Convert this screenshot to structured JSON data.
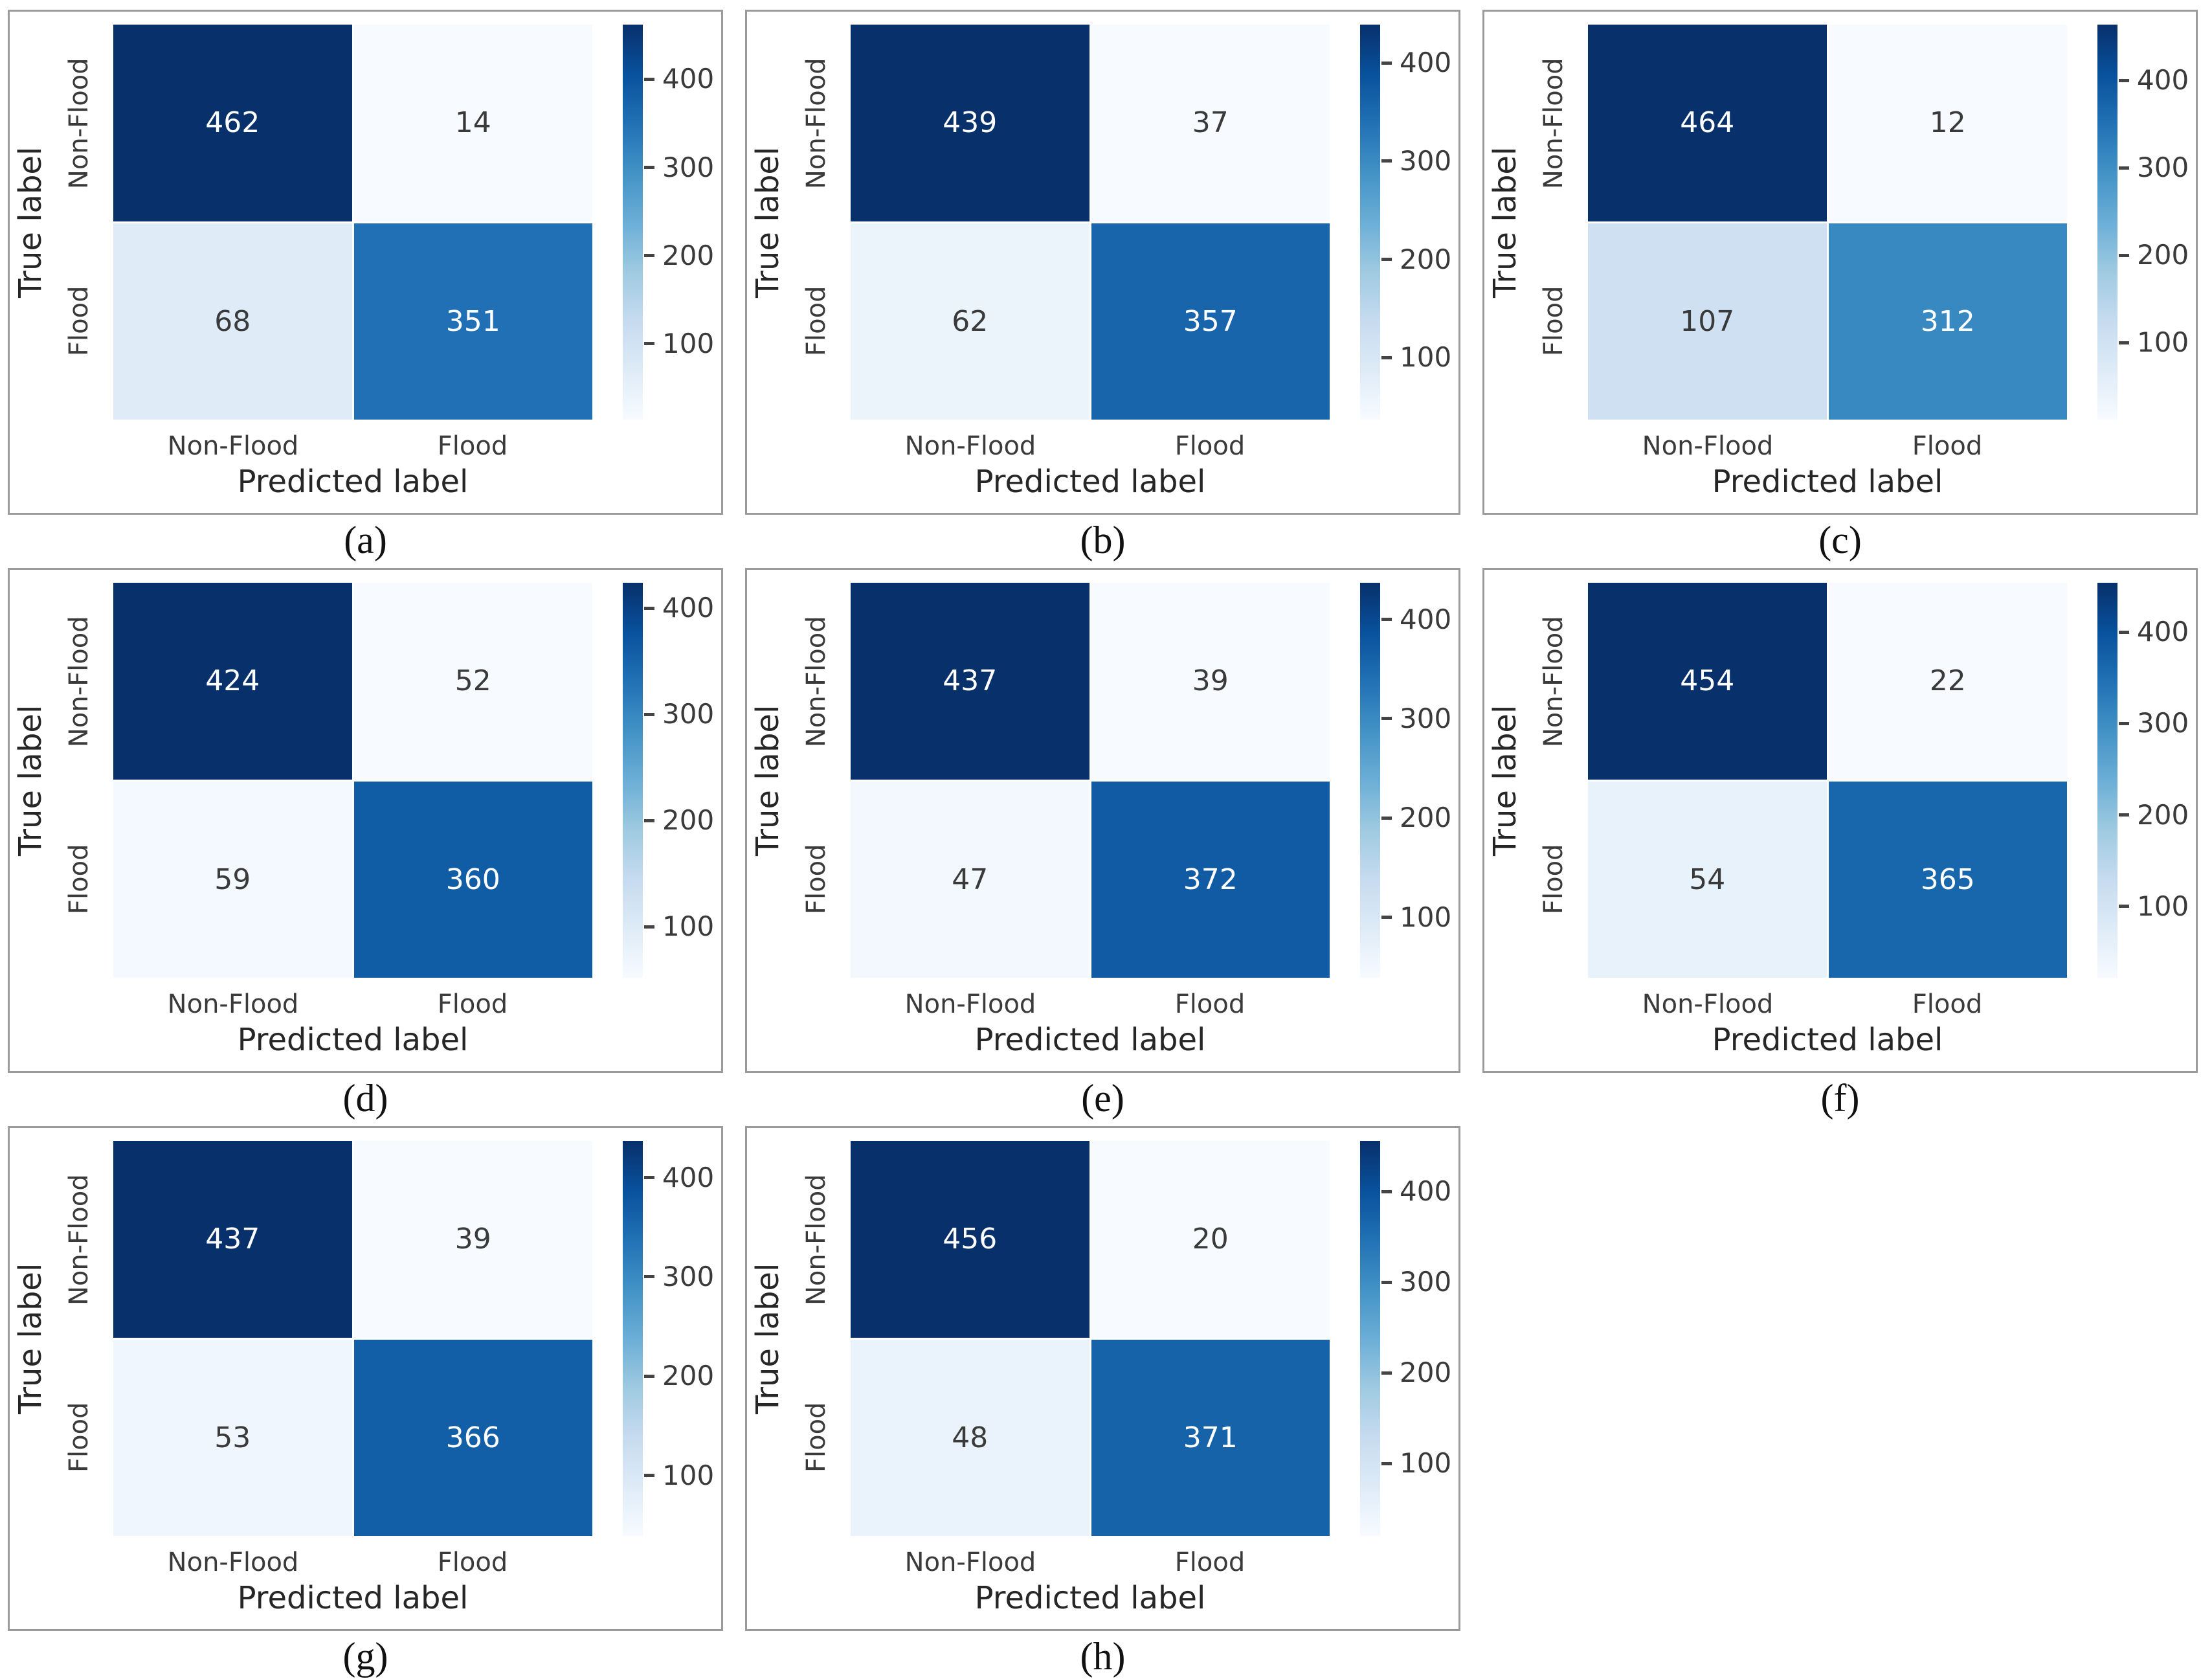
{
  "figure": {
    "description": "Grid of eight confusion matrices for flood classification models",
    "x_axis_label": "Predicted label",
    "y_axis_label": "True label",
    "class_labels": [
      "Non-Flood",
      "Flood"
    ],
    "colorbar_ticks": [
      400,
      300,
      200,
      100
    ],
    "colormap_stops": [
      "#f7fbff",
      "#deebf7",
      "#c6dbef",
      "#9ecae1",
      "#6baed6",
      "#4292c6",
      "#2171b5",
      "#08519c",
      "#08306b"
    ],
    "annotation_dark_text_color": "#3a3a3a",
    "annotation_light_text_color": "#ffffff",
    "panel_border_color": "#9b9b9b"
  },
  "chart_data": [
    {
      "type": "heatmap",
      "title": "(a)",
      "x_categories": [
        "Non-Flood",
        "Flood"
      ],
      "y_categories": [
        "Non-Flood",
        "Flood"
      ],
      "values": [
        [
          462,
          14
        ],
        [
          68,
          351
        ]
      ],
      "xlabel": "Predicted label",
      "ylabel": "True label",
      "colorbar_ticks": [
        100,
        200,
        300,
        400
      ],
      "colormap": "Blues",
      "vmin": 14,
      "vmax": 462
    },
    {
      "type": "heatmap",
      "title": "(b)",
      "x_categories": [
        "Non-Flood",
        "Flood"
      ],
      "y_categories": [
        "Non-Flood",
        "Flood"
      ],
      "values": [
        [
          439,
          37
        ],
        [
          62,
          357
        ]
      ],
      "xlabel": "Predicted label",
      "ylabel": "True label",
      "colorbar_ticks": [
        100,
        200,
        300,
        400
      ],
      "colormap": "Blues",
      "vmin": 37,
      "vmax": 439
    },
    {
      "type": "heatmap",
      "title": "(c)",
      "x_categories": [
        "Non-Flood",
        "Flood"
      ],
      "y_categories": [
        "Non-Flood",
        "Flood"
      ],
      "values": [
        [
          464,
          12
        ],
        [
          107,
          312
        ]
      ],
      "xlabel": "Predicted label",
      "ylabel": "True label",
      "colorbar_ticks": [
        100,
        200,
        300,
        400
      ],
      "colormap": "Blues",
      "vmin": 12,
      "vmax": 464
    },
    {
      "type": "heatmap",
      "title": "(d)",
      "x_categories": [
        "Non-Flood",
        "Flood"
      ],
      "y_categories": [
        "Non-Flood",
        "Flood"
      ],
      "values": [
        [
          424,
          52
        ],
        [
          59,
          360
        ]
      ],
      "xlabel": "Predicted label",
      "ylabel": "True label",
      "colorbar_ticks": [
        100,
        200,
        300,
        400
      ],
      "colormap": "Blues",
      "vmin": 52,
      "vmax": 424
    },
    {
      "type": "heatmap",
      "title": "(e)",
      "x_categories": [
        "Non-Flood",
        "Flood"
      ],
      "y_categories": [
        "Non-Flood",
        "Flood"
      ],
      "values": [
        [
          437,
          39
        ],
        [
          47,
          372
        ]
      ],
      "xlabel": "Predicted label",
      "ylabel": "True label",
      "colorbar_ticks": [
        100,
        200,
        300,
        400
      ],
      "colormap": "Blues",
      "vmin": 39,
      "vmax": 437
    },
    {
      "type": "heatmap",
      "title": "(f)",
      "x_categories": [
        "Non-Flood",
        "Flood"
      ],
      "y_categories": [
        "Non-Flood",
        "Flood"
      ],
      "values": [
        [
          454,
          22
        ],
        [
          54,
          365
        ]
      ],
      "xlabel": "Predicted label",
      "ylabel": "True label",
      "colorbar_ticks": [
        100,
        200,
        300,
        400
      ],
      "colormap": "Blues",
      "vmin": 22,
      "vmax": 454
    },
    {
      "type": "heatmap",
      "title": "(g)",
      "x_categories": [
        "Non-Flood",
        "Flood"
      ],
      "y_categories": [
        "Non-Flood",
        "Flood"
      ],
      "values": [
        [
          437,
          39
        ],
        [
          53,
          366
        ]
      ],
      "xlabel": "Predicted label",
      "ylabel": "True label",
      "colorbar_ticks": [
        100,
        200,
        300,
        400
      ],
      "colormap": "Blues",
      "vmin": 39,
      "vmax": 437
    },
    {
      "type": "heatmap",
      "title": "(h)",
      "x_categories": [
        "Non-Flood",
        "Flood"
      ],
      "y_categories": [
        "Non-Flood",
        "Flood"
      ],
      "values": [
        [
          456,
          20
        ],
        [
          48,
          371
        ]
      ],
      "xlabel": "Predicted label",
      "ylabel": "True label",
      "colorbar_ticks": [
        100,
        200,
        300,
        400
      ],
      "colormap": "Blues",
      "vmin": 20,
      "vmax": 456
    }
  ]
}
